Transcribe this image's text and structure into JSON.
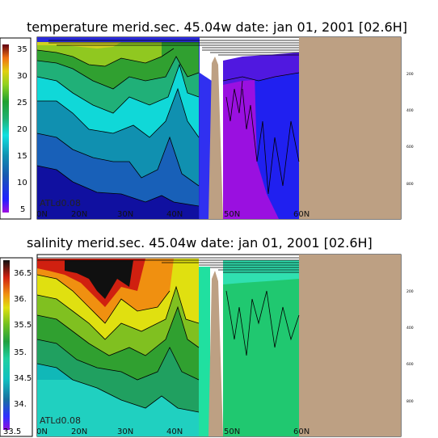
{
  "chart_data": [
    {
      "type": "heatmap",
      "title": "temperature merid.sec. 45.04w   date: jan 01, 2001   [02.6H]",
      "tag": "ATLd0.08",
      "colorbar_ticks": [
        "35",
        "30",
        "25",
        "20",
        "15",
        "10",
        "5"
      ],
      "colorbar_range": [
        5,
        36
      ],
      "lat_labels": [
        "0N",
        "20N",
        "30N",
        "40N",
        "50N",
        "60N"
      ],
      "depth_labels": [
        "200",
        "400",
        "600",
        "800"
      ],
      "land_color": "#bda083"
    },
    {
      "type": "heatmap",
      "title": "salinity merid.sec. 45.04w   date: jan 01, 2001   [02.6H]",
      "tag": "ATLd0.08",
      "colorbar_ticks": [
        "36.5",
        "36.",
        "35.5",
        "35.",
        "34.5",
        "34.",
        "33.5"
      ],
      "colorbar_range": [
        33.5,
        36.7
      ],
      "lat_labels": [
        "0N",
        "20N",
        "30N",
        "40N",
        "50N",
        "60N"
      ],
      "depth_labels": [
        "200",
        "400",
        "600",
        "800"
      ],
      "land_color": "#bda083"
    }
  ]
}
